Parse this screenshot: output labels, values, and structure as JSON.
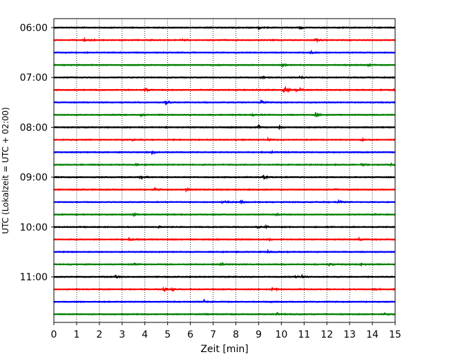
{
  "chart_data": {
    "type": "line",
    "title": "",
    "xlabel": "Zeit  [min]",
    "ylabel": "UTC (Lokalzeit = UTC + 02:00)",
    "xlim": [
      0,
      15
    ],
    "x_ticks": [
      "0",
      "1",
      "2",
      "3",
      "4",
      "5",
      "6",
      "7",
      "8",
      "9",
      "10",
      "11",
      "12",
      "13",
      "14",
      "15"
    ],
    "y_tick_labels": [
      "06:00",
      "07:00",
      "08:00",
      "09:00",
      "10:00",
      "11:00"
    ],
    "grid": "vertical dotted",
    "trace_interval_minutes": 15,
    "trace_color_cycle": [
      "#000000",
      "#ff0000",
      "#0000ff",
      "#008000"
    ],
    "traces": [
      {
        "start": "06:00",
        "color": "#000000",
        "events": [
          [
            9.0,
            0.6
          ],
          [
            10.8,
            0.5
          ]
        ]
      },
      {
        "start": "06:15",
        "color": "#ff0000",
        "events": [
          [
            1.3,
            0.5
          ],
          [
            5.6,
            0.4
          ],
          [
            11.5,
            0.4
          ]
        ]
      },
      {
        "start": "06:30",
        "color": "#0000ff",
        "events": [
          [
            11.3,
            0.6
          ]
        ]
      },
      {
        "start": "06:45",
        "color": "#008000",
        "events": [
          [
            10.0,
            0.5
          ],
          [
            13.8,
            0.4
          ]
        ]
      },
      {
        "start": "07:00",
        "color": "#000000",
        "events": [
          [
            9.1,
            0.5
          ],
          [
            10.8,
            0.5
          ]
        ]
      },
      {
        "start": "07:15",
        "color": "#ff0000",
        "events": [
          [
            4.0,
            0.6
          ],
          [
            10.1,
            1.8
          ],
          [
            10.7,
            1.0
          ],
          [
            14.9,
            0.4
          ]
        ]
      },
      {
        "start": "07:30",
        "color": "#0000ff",
        "events": [
          [
            4.9,
            0.7
          ],
          [
            9.1,
            0.7
          ]
        ]
      },
      {
        "start": "07:45",
        "color": "#008000",
        "events": [
          [
            3.8,
            0.4
          ],
          [
            8.7,
            0.4
          ],
          [
            11.5,
            0.9
          ]
        ]
      },
      {
        "start": "08:00",
        "color": "#000000",
        "events": [
          [
            9.0,
            0.6
          ],
          [
            9.9,
            0.5
          ]
        ]
      },
      {
        "start": "08:15",
        "color": "#ff0000",
        "events": [
          [
            3.4,
            0.4
          ],
          [
            9.4,
            0.4
          ],
          [
            13.5,
            0.4
          ]
        ]
      },
      {
        "start": "08:30",
        "color": "#0000ff",
        "events": [
          [
            4.3,
            0.4
          ],
          [
            9.5,
            0.4
          ]
        ]
      },
      {
        "start": "08:45",
        "color": "#008000",
        "events": [
          [
            3.6,
            0.4
          ],
          [
            13.5,
            0.4
          ],
          [
            14.8,
            0.4
          ]
        ]
      },
      {
        "start": "09:00",
        "color": "#000000",
        "events": [
          [
            3.8,
            0.6
          ],
          [
            9.2,
            0.8
          ]
        ]
      },
      {
        "start": "09:15",
        "color": "#ff0000",
        "events": [
          [
            4.4,
            0.6
          ],
          [
            5.8,
            0.5
          ],
          [
            12.3,
            0.4
          ]
        ]
      },
      {
        "start": "09:30",
        "color": "#0000ff",
        "events": [
          [
            7.4,
            0.8
          ],
          [
            8.2,
            0.6
          ],
          [
            12.5,
            0.4
          ]
        ]
      },
      {
        "start": "09:45",
        "color": "#008000",
        "events": [
          [
            3.5,
            0.4
          ],
          [
            9.8,
            0.5
          ],
          [
            14.0,
            0.4
          ]
        ]
      },
      {
        "start": "10:00",
        "color": "#000000",
        "events": [
          [
            4.6,
            0.4
          ],
          [
            8.9,
            0.4
          ],
          [
            9.3,
            0.4
          ]
        ]
      },
      {
        "start": "10:15",
        "color": "#ff0000",
        "events": [
          [
            3.3,
            0.5
          ],
          [
            9.4,
            0.5
          ],
          [
            13.4,
            0.4
          ]
        ]
      },
      {
        "start": "10:30",
        "color": "#0000ff",
        "events": [
          [
            9.4,
            0.6
          ]
        ]
      },
      {
        "start": "10:45",
        "color": "#008000",
        "events": [
          [
            3.5,
            0.4
          ],
          [
            7.3,
            0.5
          ],
          [
            12.1,
            0.4
          ],
          [
            13.5,
            0.4
          ]
        ]
      },
      {
        "start": "11:00",
        "color": "#000000",
        "events": [
          [
            2.7,
            0.5
          ],
          [
            10.6,
            0.5
          ],
          [
            10.9,
            0.4
          ]
        ]
      },
      {
        "start": "11:15",
        "color": "#ff0000",
        "events": [
          [
            4.8,
            1.0
          ],
          [
            5.2,
            0.7
          ],
          [
            9.6,
            0.5
          ],
          [
            14.1,
            0.4
          ]
        ]
      },
      {
        "start": "11:30",
        "color": "#0000ff",
        "events": [
          [
            6.6,
            0.6
          ],
          [
            9.4,
            0.4
          ]
        ]
      },
      {
        "start": "11:45",
        "color": "#008000",
        "events": [
          [
            9.8,
            0.5
          ],
          [
            14.5,
            0.4
          ]
        ]
      }
    ]
  }
}
